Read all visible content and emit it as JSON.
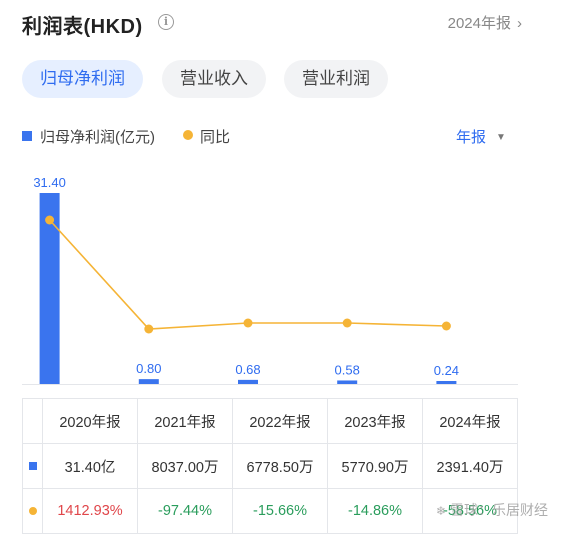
{
  "header": {
    "title": "利润表(HKD)",
    "info_icon": "info-circle-icon",
    "year_link": "2024年报",
    "chevron_icon": "chevron-right-icon"
  },
  "tabs": [
    {
      "label": "归母净利润",
      "active": true
    },
    {
      "label": "营业收入",
      "active": false
    },
    {
      "label": "营业利润",
      "active": false
    }
  ],
  "legend": {
    "bar_label": "归母净利润(亿元)",
    "line_label": "同比"
  },
  "period_select": {
    "value": "年报",
    "caret_icon": "triangle-down-icon"
  },
  "colors": {
    "bar": "#3a74ee",
    "line": "#f5b436",
    "positive": "#e0464a",
    "negative": "#2a9d5c",
    "accent": "#2f6cf0"
  },
  "chart_data": {
    "type": "bar",
    "categories": [
      "2020年报",
      "2021年报",
      "2022年报",
      "2023年报",
      "2024年报"
    ],
    "series": [
      {
        "name": "归母净利润(亿元)",
        "type": "bar",
        "values": [
          31.4,
          0.8,
          0.68,
          0.58,
          0.24
        ],
        "labels": [
          "31.40",
          "0.80",
          "0.68",
          "0.58",
          "0.24"
        ]
      },
      {
        "name": "同比",
        "type": "line",
        "values": [
          1412.93,
          -97.44,
          -15.66,
          -14.86,
          -58.56
        ]
      }
    ],
    "ylim": [
      0,
      31.4
    ]
  },
  "table": {
    "headers": [
      "",
      "2020年报",
      "2021年报",
      "2022年报",
      "2023年报",
      "2024年报"
    ],
    "profit_row": [
      "31.40亿",
      "8037.00万",
      "6778.50万",
      "5770.90万",
      "2391.40万"
    ],
    "yoy_row": [
      "1412.93%",
      "-97.44%",
      "-15.66%",
      "-14.86%",
      "-58.56%"
    ]
  },
  "watermark": {
    "text": "雪球：乐居财经",
    "icon": "snowball-icon"
  }
}
